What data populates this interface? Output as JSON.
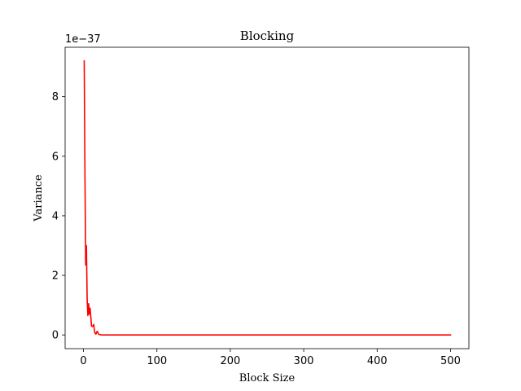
{
  "chart_data": {
    "type": "line",
    "title": "Blocking",
    "xlabel": "Block Size",
    "ylabel": "Variance",
    "offset_text": "1e−37",
    "scale_exponent": -37,
    "xlim": [
      -25,
      525
    ],
    "ylim": [
      -0.46,
      9.66
    ],
    "x_ticks": [
      0,
      100,
      200,
      300,
      400,
      500
    ],
    "x_tick_labels": [
      "0",
      "100",
      "200",
      "300",
      "400",
      "500"
    ],
    "y_ticks": [
      0,
      2,
      4,
      6,
      8
    ],
    "y_tick_labels": [
      "0",
      "2",
      "4",
      "6",
      "8"
    ],
    "grid": false,
    "legend": "none",
    "series": [
      {
        "color": "#ff0000",
        "x": [
          1,
          2,
          3,
          4,
          5,
          6,
          7,
          8,
          9,
          10,
          11,
          12,
          13,
          14,
          15,
          16,
          17,
          18,
          19,
          20,
          21,
          22,
          23,
          25,
          30,
          40,
          50,
          100,
          200,
          300,
          400,
          500
        ],
        "y": [
          9.2,
          5.4,
          2.35,
          3.0,
          1.2,
          0.65,
          1.05,
          0.7,
          0.9,
          0.6,
          0.3,
          0.28,
          0.3,
          0.35,
          0.12,
          0.05,
          0.03,
          0.1,
          0.12,
          0.05,
          0.02,
          0.01,
          0.01,
          0.0,
          0.0,
          0.0,
          0.0,
          0.0,
          0.0,
          0.0,
          0.0,
          0.0
        ]
      }
    ]
  }
}
